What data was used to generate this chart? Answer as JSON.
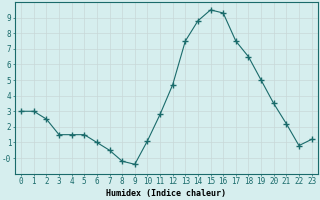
{
  "x": [
    0,
    1,
    2,
    3,
    4,
    5,
    6,
    7,
    8,
    9,
    10,
    11,
    12,
    13,
    14,
    15,
    16,
    17,
    18,
    19,
    20,
    21,
    22,
    23
  ],
  "y": [
    3.0,
    3.0,
    2.5,
    1.5,
    1.5,
    1.5,
    1.0,
    0.5,
    -0.2,
    -0.4,
    1.1,
    2.8,
    4.7,
    7.5,
    8.8,
    9.5,
    9.3,
    7.5,
    6.5,
    5.0,
    3.5,
    2.2,
    0.8,
    1.2
  ],
  "line_color": "#1a6b6b",
  "marker": "+",
  "marker_size": 4,
  "marker_lw": 1.0,
  "bg_color": "#d6eeee",
  "grid_color": "#c8d8d8",
  "xlabel": "Humidex (Indice chaleur)",
  "ylim": [
    -1,
    10
  ],
  "xlim": [
    -0.5,
    23.5
  ],
  "yticks": [
    0,
    1,
    2,
    3,
    4,
    5,
    6,
    7,
    8,
    9
  ],
  "ytick_labels": [
    "-0",
    "1",
    "2",
    "3",
    "4",
    "5",
    "6",
    "7",
    "8",
    "9"
  ],
  "xticks": [
    0,
    1,
    2,
    3,
    4,
    5,
    6,
    7,
    8,
    9,
    10,
    11,
    12,
    13,
    14,
    15,
    16,
    17,
    18,
    19,
    20,
    21,
    22,
    23
  ],
  "label_fontsize": 6,
  "tick_fontsize": 5.5
}
